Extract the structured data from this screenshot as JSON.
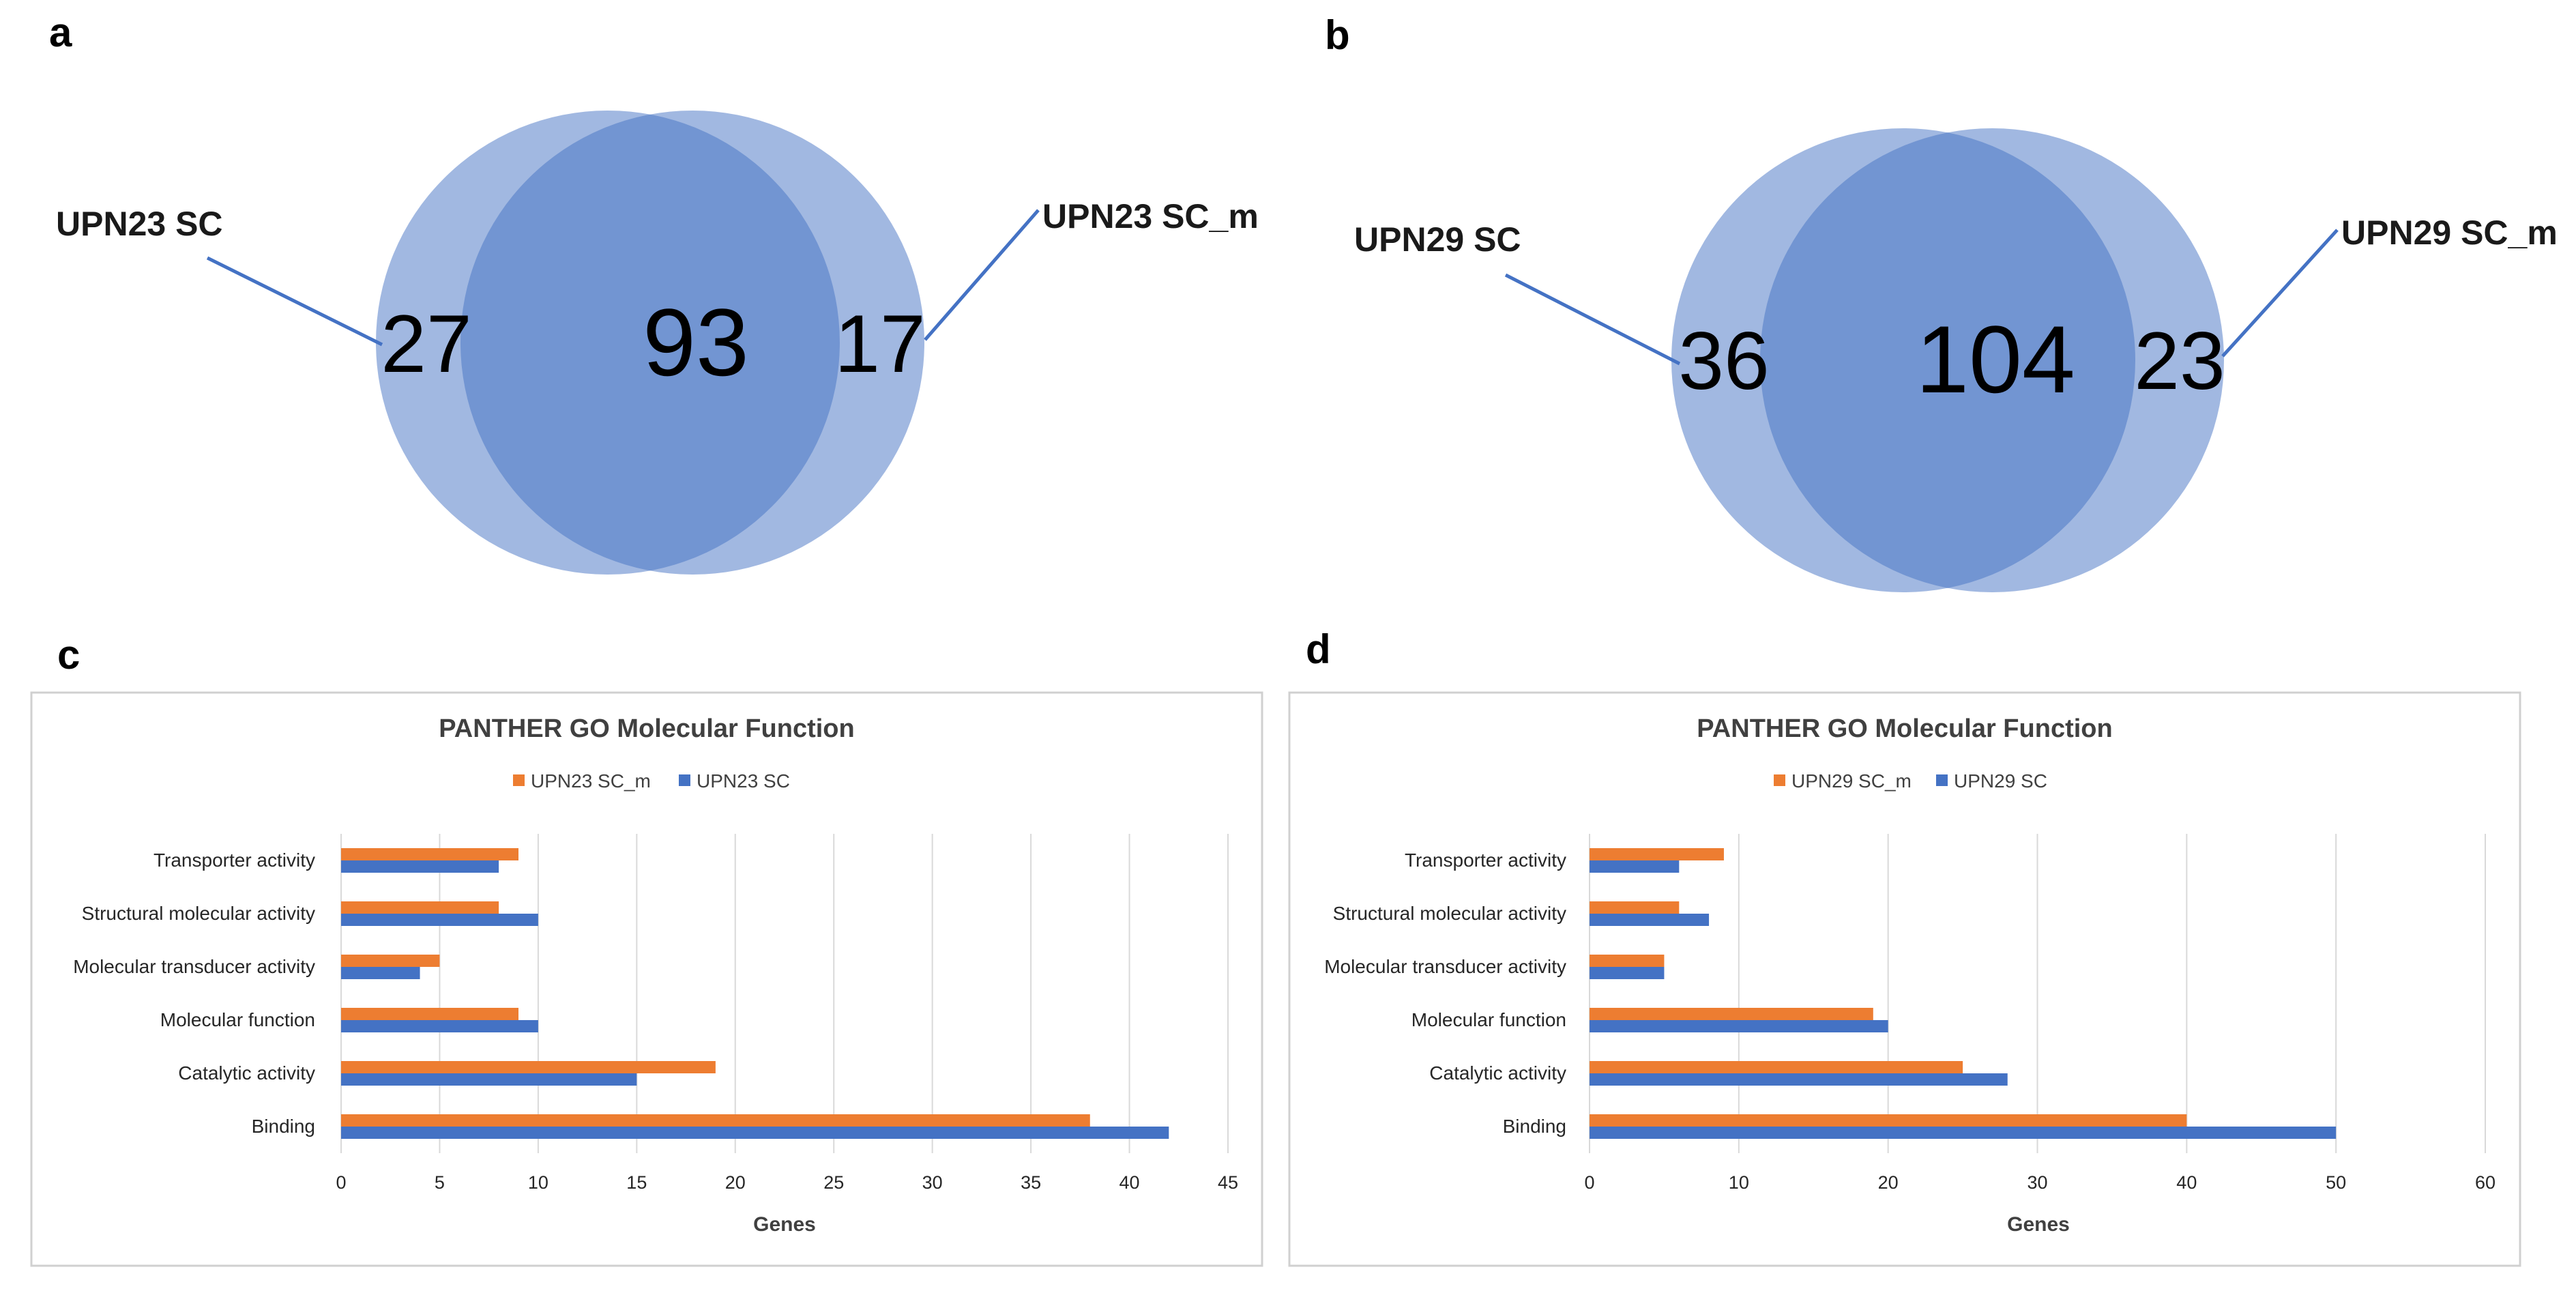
{
  "panels": {
    "a": "a",
    "b": "b",
    "c": "c",
    "d": "d"
  },
  "colors": {
    "series_m": "#ED7D31",
    "series_sc": "#4472C4",
    "venn_fill": "#4472C4",
    "grid": "#d9d9d9",
    "frame": "#d0d0d0"
  },
  "venn_a": {
    "left_label": "UPN23 SC",
    "right_label": "UPN23 SC_m",
    "left_only": "27",
    "overlap": "93",
    "right_only": "17"
  },
  "venn_b": {
    "left_label": "UPN29 SC",
    "right_label": "UPN29 SC_m",
    "left_only": "36",
    "overlap": "104",
    "right_only": "23"
  },
  "chart_data": [
    {
      "id": "c",
      "type": "bar",
      "orientation": "horizontal",
      "title": "PANTHER GO Molecular Function",
      "xlabel": "Genes",
      "ylabel": "",
      "xlim": [
        0,
        45
      ],
      "xticks": [
        0,
        5,
        10,
        15,
        20,
        25,
        30,
        35,
        40,
        45
      ],
      "grid": true,
      "legend_position": "top",
      "categories": [
        "Transporter activity",
        "Structural molecular activity",
        "Molecular transducer activity",
        "Molecular function",
        "Catalytic activity",
        "Binding"
      ],
      "series": [
        {
          "name": "UPN23 SC_m",
          "color": "#ED7D31",
          "values": [
            9,
            8,
            5,
            9,
            19,
            38
          ]
        },
        {
          "name": "UPN23 SC",
          "color": "#4472C4",
          "values": [
            8,
            10,
            4,
            10,
            15,
            42
          ]
        }
      ]
    },
    {
      "id": "d",
      "type": "bar",
      "orientation": "horizontal",
      "title": "PANTHER GO Molecular Function",
      "xlabel": "Genes",
      "ylabel": "",
      "xlim": [
        0,
        60
      ],
      "xticks": [
        0,
        10,
        20,
        30,
        40,
        50,
        60
      ],
      "grid": true,
      "legend_position": "top",
      "categories": [
        "Transporter activity",
        "Structural molecular activity",
        "Molecular transducer activity",
        "Molecular function",
        "Catalytic activity",
        "Binding"
      ],
      "series": [
        {
          "name": "UPN29 SC_m",
          "color": "#ED7D31",
          "values": [
            9,
            6,
            5,
            19,
            25,
            40
          ]
        },
        {
          "name": "UPN29 SC",
          "color": "#4472C4",
          "values": [
            6,
            8,
            5,
            20,
            28,
            50
          ]
        }
      ]
    }
  ]
}
